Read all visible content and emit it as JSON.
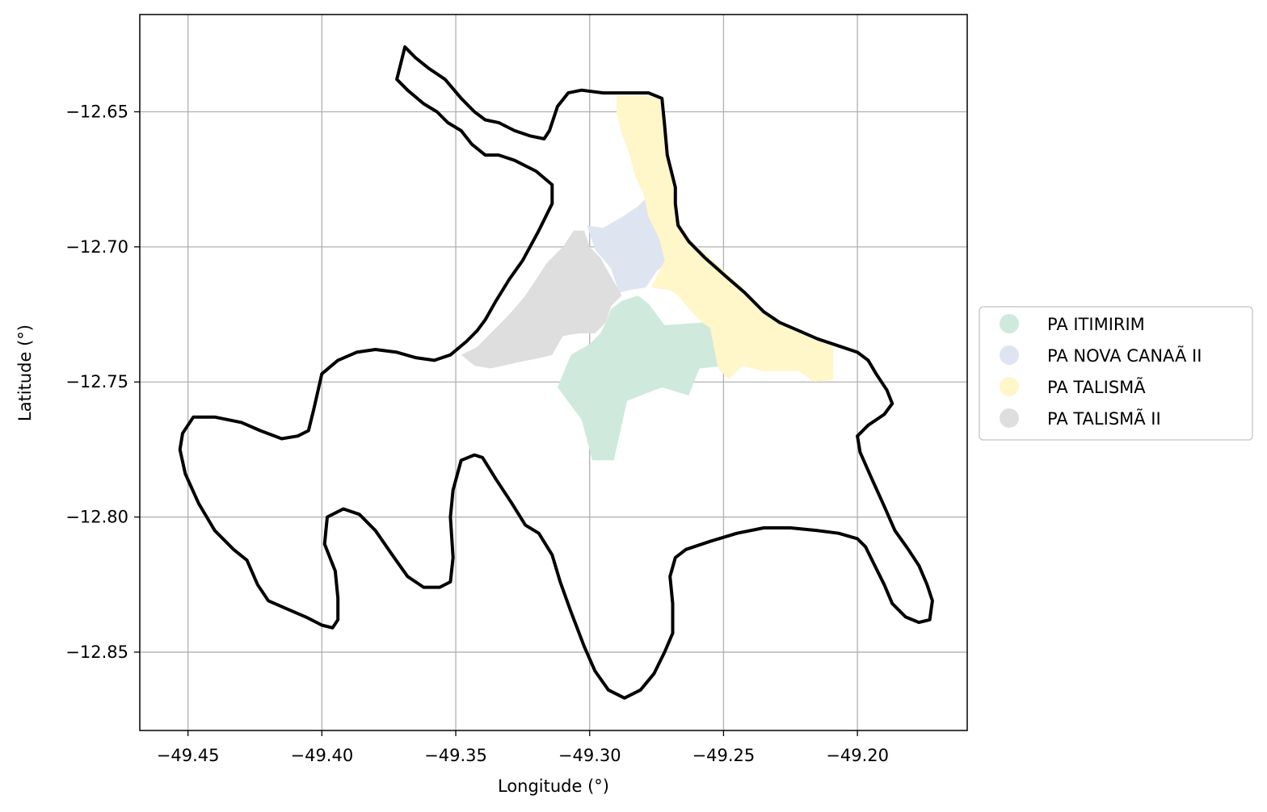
{
  "chart_data": {
    "type": "map",
    "xlabel": "Longitude (°)",
    "ylabel": "Latitude (°)",
    "xlim": [
      -49.468,
      -49.159
    ],
    "ylim": [
      -12.879,
      -12.614
    ],
    "grid": true,
    "legend_placement": "center-right, outside plot",
    "xticks": [
      {
        "value": -49.45,
        "label": "−49.45"
      },
      {
        "value": -49.4,
        "label": "−49.40"
      },
      {
        "value": -49.35,
        "label": "−49.35"
      },
      {
        "value": -49.3,
        "label": "−49.30"
      },
      {
        "value": -49.25,
        "label": "−49.25"
      },
      {
        "value": -49.2,
        "label": "−49.20"
      }
    ],
    "yticks": [
      {
        "value": -12.65,
        "label": "−12.65"
      },
      {
        "value": -12.7,
        "label": "−12.70"
      },
      {
        "value": -12.75,
        "label": "−12.75"
      },
      {
        "value": -12.8,
        "label": "−12.80"
      },
      {
        "value": -12.85,
        "label": "−12.85"
      }
    ],
    "boundary": {
      "color": "#000000",
      "coords": [
        [
          -49.372,
          -12.638
        ],
        [
          -49.369,
          -12.626
        ],
        [
          -49.365,
          -12.63
        ],
        [
          -49.36,
          -12.634
        ],
        [
          -49.354,
          -12.638
        ],
        [
          -49.348,
          -12.645
        ],
        [
          -49.343,
          -12.65
        ],
        [
          -49.339,
          -12.653
        ],
        [
          -49.334,
          -12.654
        ],
        [
          -49.328,
          -12.657
        ],
        [
          -49.322,
          -12.659
        ],
        [
          -49.317,
          -12.66
        ],
        [
          -49.315,
          -12.657
        ],
        [
          -49.312,
          -12.648
        ],
        [
          -49.308,
          -12.643
        ],
        [
          -49.303,
          -12.642
        ],
        [
          -49.295,
          -12.643
        ],
        [
          -49.285,
          -12.643
        ],
        [
          -49.278,
          -12.643
        ],
        [
          -49.273,
          -12.645
        ],
        [
          -49.272,
          -12.655
        ],
        [
          -49.271,
          -12.666
        ],
        [
          -49.268,
          -12.678
        ],
        [
          -49.268,
          -12.684
        ],
        [
          -49.267,
          -12.692
        ],
        [
          -49.263,
          -12.698
        ],
        [
          -49.257,
          -12.704
        ],
        [
          -49.249,
          -12.711
        ],
        [
          -49.242,
          -12.717
        ],
        [
          -49.235,
          -12.724
        ],
        [
          -49.229,
          -12.728
        ],
        [
          -49.222,
          -12.731
        ],
        [
          -49.215,
          -12.734
        ],
        [
          -49.206,
          -12.737
        ],
        [
          -49.2,
          -12.739
        ],
        [
          -49.196,
          -12.742
        ],
        [
          -49.193,
          -12.747
        ],
        [
          -49.189,
          -12.753
        ],
        [
          -49.187,
          -12.758
        ],
        [
          -49.19,
          -12.762
        ],
        [
          -49.196,
          -12.766
        ],
        [
          -49.2,
          -12.77
        ],
        [
          -49.199,
          -12.776
        ],
        [
          -49.195,
          -12.785
        ],
        [
          -49.19,
          -12.796
        ],
        [
          -49.186,
          -12.805
        ],
        [
          -49.181,
          -12.812
        ],
        [
          -49.177,
          -12.818
        ],
        [
          -49.174,
          -12.825
        ],
        [
          -49.172,
          -12.831
        ],
        [
          -49.173,
          -12.838
        ],
        [
          -49.177,
          -12.839
        ],
        [
          -49.182,
          -12.837
        ],
        [
          -49.187,
          -12.832
        ],
        [
          -49.19,
          -12.825
        ],
        [
          -49.194,
          -12.817
        ],
        [
          -49.197,
          -12.811
        ],
        [
          -49.2,
          -12.808
        ],
        [
          -49.207,
          -12.806
        ],
        [
          -49.215,
          -12.805
        ],
        [
          -49.225,
          -12.804
        ],
        [
          -49.235,
          -12.804
        ],
        [
          -49.245,
          -12.806
        ],
        [
          -49.255,
          -12.809
        ],
        [
          -49.264,
          -12.812
        ],
        [
          -49.268,
          -12.815
        ],
        [
          -49.27,
          -12.822
        ],
        [
          -49.269,
          -12.832
        ],
        [
          -49.269,
          -12.843
        ],
        [
          -49.272,
          -12.85
        ],
        [
          -49.276,
          -12.858
        ],
        [
          -49.281,
          -12.864
        ],
        [
          -49.287,
          -12.867
        ],
        [
          -49.293,
          -12.864
        ],
        [
          -49.298,
          -12.857
        ],
        [
          -49.302,
          -12.848
        ],
        [
          -49.307,
          -12.835
        ],
        [
          -49.311,
          -12.824
        ],
        [
          -49.314,
          -12.814
        ],
        [
          -49.319,
          -12.806
        ],
        [
          -49.324,
          -12.803
        ],
        [
          -49.329,
          -12.795
        ],
        [
          -49.335,
          -12.786
        ],
        [
          -49.34,
          -12.778
        ],
        [
          -49.343,
          -12.777
        ],
        [
          -49.348,
          -12.779
        ],
        [
          -49.351,
          -12.79
        ],
        [
          -49.352,
          -12.8
        ],
        [
          -49.351,
          -12.815
        ],
        [
          -49.352,
          -12.824
        ],
        [
          -49.356,
          -12.826
        ],
        [
          -49.362,
          -12.826
        ],
        [
          -49.368,
          -12.822
        ],
        [
          -49.373,
          -12.815
        ],
        [
          -49.38,
          -12.805
        ],
        [
          -49.386,
          -12.799
        ],
        [
          -49.392,
          -12.797
        ],
        [
          -49.398,
          -12.8
        ],
        [
          -49.399,
          -12.81
        ],
        [
          -49.395,
          -12.82
        ],
        [
          -49.394,
          -12.83
        ],
        [
          -49.394,
          -12.838
        ],
        [
          -49.396,
          -12.841
        ],
        [
          -49.4,
          -12.84
        ],
        [
          -49.406,
          -12.837
        ],
        [
          -49.413,
          -12.834
        ],
        [
          -49.42,
          -12.831
        ],
        [
          -49.424,
          -12.825
        ],
        [
          -49.428,
          -12.816
        ],
        [
          -49.433,
          -12.812
        ],
        [
          -49.44,
          -12.805
        ],
        [
          -49.446,
          -12.795
        ],
        [
          -49.451,
          -12.784
        ],
        [
          -49.453,
          -12.775
        ],
        [
          -49.452,
          -12.769
        ],
        [
          -49.448,
          -12.763
        ],
        [
          -49.44,
          -12.763
        ],
        [
          -49.43,
          -12.765
        ],
        [
          -49.423,
          -12.768
        ],
        [
          -49.415,
          -12.771
        ],
        [
          -49.409,
          -12.77
        ],
        [
          -49.405,
          -12.768
        ],
        [
          -49.403,
          -12.76
        ],
        [
          -49.4,
          -12.747
        ],
        [
          -49.394,
          -12.742
        ],
        [
          -49.387,
          -12.739
        ],
        [
          -49.38,
          -12.738
        ],
        [
          -49.372,
          -12.739
        ],
        [
          -49.365,
          -12.741
        ],
        [
          -49.358,
          -12.742
        ],
        [
          -49.352,
          -12.74
        ],
        [
          -49.346,
          -12.735
        ],
        [
          -49.342,
          -12.731
        ],
        [
          -49.339,
          -12.727
        ],
        [
          -49.335,
          -12.72
        ],
        [
          -49.33,
          -12.712
        ],
        [
          -49.325,
          -12.705
        ],
        [
          -49.319,
          -12.694
        ],
        [
          -49.314,
          -12.684
        ],
        [
          -49.314,
          -12.677
        ],
        [
          -49.32,
          -12.672
        ],
        [
          -49.328,
          -12.668
        ],
        [
          -49.334,
          -12.666
        ],
        [
          -49.339,
          -12.666
        ],
        [
          -49.344,
          -12.662
        ],
        [
          -49.348,
          -12.657
        ],
        [
          -49.353,
          -12.654
        ],
        [
          -49.357,
          -12.65
        ],
        [
          -49.362,
          -12.647
        ],
        [
          -49.368,
          -12.642
        ],
        [
          -49.372,
          -12.638
        ]
      ]
    },
    "series": [
      {
        "name": "PA ITIMIRIM",
        "color": "#cfeadc",
        "coords": [
          [
            -49.312,
            -12.752
          ],
          [
            -49.307,
            -12.74
          ],
          [
            -49.3,
            -12.736
          ],
          [
            -49.296,
            -12.732
          ],
          [
            -49.294,
            -12.728
          ],
          [
            -49.292,
            -12.723
          ],
          [
            -49.288,
            -12.72
          ],
          [
            -49.282,
            -12.718
          ],
          [
            -49.278,
            -12.721
          ],
          [
            -49.272,
            -12.729
          ],
          [
            -49.258,
            -12.728
          ],
          [
            -49.251,
            -12.727
          ],
          [
            -49.249,
            -12.734
          ],
          [
            -49.249,
            -12.744
          ],
          [
            -49.259,
            -12.745
          ],
          [
            -49.263,
            -12.755
          ],
          [
            -49.273,
            -12.752
          ],
          [
            -49.286,
            -12.757
          ],
          [
            -49.291,
            -12.779
          ],
          [
            -49.299,
            -12.779
          ],
          [
            -49.303,
            -12.764
          ],
          [
            -49.312,
            -12.752
          ]
        ]
      },
      {
        "name": "PA NOVA CANAÃ II",
        "color": "#dfe4f1",
        "coords": [
          [
            -49.301,
            -12.692
          ],
          [
            -49.295,
            -12.693
          ],
          [
            -49.288,
            -12.689
          ],
          [
            -49.282,
            -12.685
          ],
          [
            -49.279,
            -12.682
          ],
          [
            -49.278,
            -12.684
          ],
          [
            -49.277,
            -12.69
          ],
          [
            -49.274,
            -12.697
          ],
          [
            -49.272,
            -12.701
          ],
          [
            -49.27,
            -12.705
          ],
          [
            -49.275,
            -12.709
          ],
          [
            -49.279,
            -12.715
          ],
          [
            -49.285,
            -12.716
          ],
          [
            -49.289,
            -12.717
          ],
          [
            -49.292,
            -12.708
          ],
          [
            -49.298,
            -12.701
          ],
          [
            -49.301,
            -12.692
          ]
        ]
      },
      {
        "name": "PA TALISMÃ",
        "color": "#fff6c9",
        "coords": [
          [
            -49.29,
            -12.644
          ],
          [
            -49.28,
            -12.644
          ],
          [
            -49.274,
            -12.645
          ],
          [
            -49.272,
            -12.656
          ],
          [
            -49.271,
            -12.666
          ],
          [
            -49.268,
            -12.678
          ],
          [
            -49.268,
            -12.689
          ],
          [
            -49.262,
            -12.698
          ],
          [
            -49.254,
            -12.705
          ],
          [
            -49.245,
            -12.713
          ],
          [
            -49.237,
            -12.722
          ],
          [
            -49.228,
            -12.729
          ],
          [
            -49.217,
            -12.734
          ],
          [
            -49.209,
            -12.737
          ],
          [
            -49.209,
            -12.749
          ],
          [
            -49.216,
            -12.75
          ],
          [
            -49.222,
            -12.746
          ],
          [
            -49.235,
            -12.746
          ],
          [
            -49.243,
            -12.744
          ],
          [
            -49.248,
            -12.749
          ],
          [
            -49.252,
            -12.745
          ],
          [
            -49.255,
            -12.73
          ],
          [
            -49.258,
            -12.728
          ],
          [
            -49.262,
            -12.724
          ],
          [
            -49.267,
            -12.718
          ],
          [
            -49.27,
            -12.716
          ],
          [
            -49.277,
            -12.715
          ],
          [
            -49.272,
            -12.705
          ],
          [
            -49.274,
            -12.697
          ],
          [
            -49.278,
            -12.689
          ],
          [
            -49.28,
            -12.68
          ],
          [
            -49.283,
            -12.674
          ],
          [
            -49.285,
            -12.666
          ],
          [
            -49.288,
            -12.658
          ],
          [
            -49.29,
            -12.65
          ],
          [
            -49.29,
            -12.644
          ]
        ]
      },
      {
        "name": "PA TALISMÃ II",
        "color": "#dedede",
        "coords": [
          [
            -49.306,
            -12.694
          ],
          [
            -49.31,
            -12.7
          ],
          [
            -49.316,
            -12.706
          ],
          [
            -49.32,
            -12.712
          ],
          [
            -49.324,
            -12.718
          ],
          [
            -49.33,
            -12.725
          ],
          [
            -49.336,
            -12.731
          ],
          [
            -49.342,
            -12.737
          ],
          [
            -49.348,
            -12.74
          ],
          [
            -49.343,
            -12.744
          ],
          [
            -49.337,
            -12.745
          ],
          [
            -49.328,
            -12.743
          ],
          [
            -49.318,
            -12.741
          ],
          [
            -49.314,
            -12.74
          ],
          [
            -49.31,
            -12.733
          ],
          [
            -49.304,
            -12.732
          ],
          [
            -49.298,
            -12.732
          ],
          [
            -49.294,
            -12.728
          ],
          [
            -49.292,
            -12.722
          ],
          [
            -49.288,
            -12.718
          ],
          [
            -49.292,
            -12.711
          ],
          [
            -49.296,
            -12.704
          ],
          [
            -49.3,
            -12.7
          ],
          [
            -49.302,
            -12.694
          ],
          [
            -49.306,
            -12.694
          ]
        ]
      }
    ]
  }
}
